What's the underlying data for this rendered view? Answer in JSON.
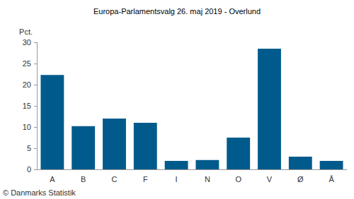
{
  "chart_data": {
    "type": "bar",
    "title": "Europa-Parlamentsvalg 26. maj 2019 - Overlund",
    "y_label": "Pct.",
    "source": "© Danmarks Statistik",
    "categories": [
      "A",
      "B",
      "C",
      "F",
      "I",
      "N",
      "O",
      "V",
      "Ø",
      "Å"
    ],
    "values": [
      22.3,
      10.2,
      12.0,
      11.0,
      2.0,
      2.2,
      7.5,
      28.5,
      3.0,
      2.0
    ],
    "color": "#005b8c",
    "ylim": [
      0,
      30
    ],
    "yticks": [
      0,
      5,
      10,
      15,
      20,
      25,
      30
    ],
    "grid": false
  }
}
